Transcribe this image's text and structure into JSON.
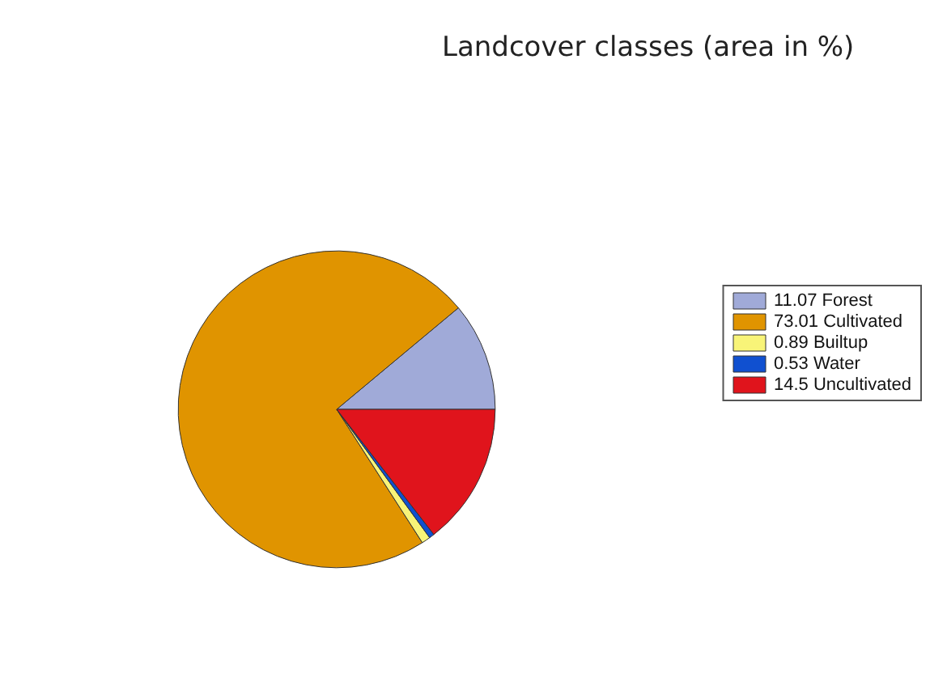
{
  "chart_data": {
    "type": "pie",
    "title": "Landcover classes (area in %)",
    "categories": [
      "11.07 Forest",
      "73.01 Cultivated",
      "0.89 Builtup",
      "0.53 Water",
      "14.5 Uncultivated"
    ],
    "values": [
      11.07,
      73.01,
      0.89,
      0.53,
      14.5
    ],
    "colors": [
      "#a0aad8",
      "#e09400",
      "#f8f478",
      "#1050d0",
      "#e0141c"
    ],
    "legend": "right"
  }
}
